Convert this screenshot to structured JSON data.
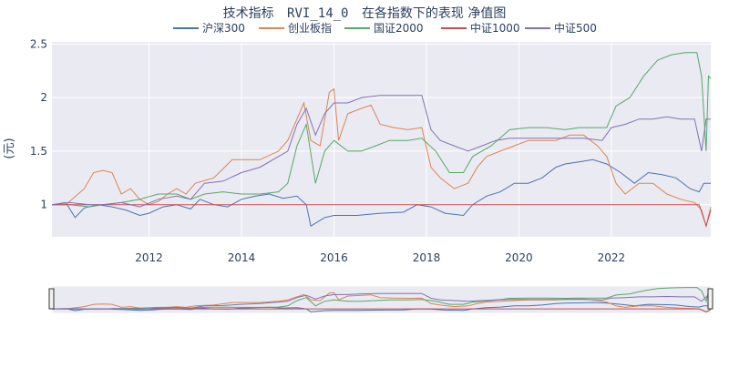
{
  "chart_data": {
    "type": "line",
    "title_main": "技术指标",
    "title_code": "RVI_14_0",
    "title_rest": "在各指数下的表现 净值图",
    "ylabel": "(元)",
    "xlabel": "",
    "xlim": [
      2009.9,
      2024.15
    ],
    "ylim": [
      0.7,
      2.52
    ],
    "x_ticks": [
      2012,
      2014,
      2016,
      2018,
      2020,
      2022
    ],
    "x_tick_labels": [
      "2012",
      "2014",
      "2016",
      "2018",
      "2020",
      "2022"
    ],
    "y_ticks": [
      1,
      1.5,
      2,
      2.5
    ],
    "y_tick_labels": [
      "1",
      "1.5",
      "2",
      "2.5"
    ],
    "legend_position": "top-center",
    "range_slider": true,
    "series": [
      {
        "name": "沪深300",
        "color": "#4c72b0",
        "points": [
          [
            2009.9,
            1.0
          ],
          [
            2010.2,
            1.02
          ],
          [
            2010.4,
            0.88
          ],
          [
            2010.6,
            0.97
          ],
          [
            2010.9,
            1.0
          ],
          [
            2011.2,
            0.98
          ],
          [
            2011.5,
            0.95
          ],
          [
            2011.8,
            0.9
          ],
          [
            2012.0,
            0.92
          ],
          [
            2012.3,
            0.98
          ],
          [
            2012.6,
            1.0
          ],
          [
            2012.9,
            0.96
          ],
          [
            2013.1,
            1.05
          ],
          [
            2013.4,
            1.0
          ],
          [
            2013.7,
            0.98
          ],
          [
            2014.0,
            1.05
          ],
          [
            2014.3,
            1.08
          ],
          [
            2014.6,
            1.1
          ],
          [
            2014.9,
            1.06
          ],
          [
            2015.2,
            1.08
          ],
          [
            2015.4,
            1.0
          ],
          [
            2015.5,
            0.8
          ],
          [
            2015.8,
            0.88
          ],
          [
            2016.0,
            0.9
          ],
          [
            2016.5,
            0.9
          ],
          [
            2017.0,
            0.92
          ],
          [
            2017.5,
            0.93
          ],
          [
            2017.8,
            1.0
          ],
          [
            2018.1,
            0.98
          ],
          [
            2018.4,
            0.92
          ],
          [
            2018.8,
            0.9
          ],
          [
            2019.0,
            1.0
          ],
          [
            2019.3,
            1.08
          ],
          [
            2019.6,
            1.12
          ],
          [
            2019.9,
            1.2
          ],
          [
            2020.2,
            1.2
          ],
          [
            2020.5,
            1.25
          ],
          [
            2020.8,
            1.35
          ],
          [
            2021.0,
            1.38
          ],
          [
            2021.3,
            1.4
          ],
          [
            2021.6,
            1.42
          ],
          [
            2021.9,
            1.38
          ],
          [
            2022.2,
            1.3
          ],
          [
            2022.5,
            1.2
          ],
          [
            2022.8,
            1.3
          ],
          [
            2023.1,
            1.28
          ],
          [
            2023.4,
            1.25
          ],
          [
            2023.7,
            1.15
          ],
          [
            2023.9,
            1.12
          ],
          [
            2024.0,
            1.2
          ],
          [
            2024.15,
            1.2
          ]
        ]
      },
      {
        "name": "创业板指",
        "color": "#dd8452",
        "points": [
          [
            2009.9,
            1.0
          ],
          [
            2010.2,
            1.0
          ],
          [
            2010.6,
            1.15
          ],
          [
            2010.8,
            1.3
          ],
          [
            2011.0,
            1.32
          ],
          [
            2011.2,
            1.3
          ],
          [
            2011.4,
            1.1
          ],
          [
            2011.6,
            1.15
          ],
          [
            2011.8,
            1.05
          ],
          [
            2012.0,
            1.0
          ],
          [
            2012.2,
            1.03
          ],
          [
            2012.4,
            1.1
          ],
          [
            2012.6,
            1.15
          ],
          [
            2012.8,
            1.1
          ],
          [
            2013.0,
            1.2
          ],
          [
            2013.4,
            1.25
          ],
          [
            2013.8,
            1.42
          ],
          [
            2014.0,
            1.42
          ],
          [
            2014.4,
            1.42
          ],
          [
            2014.8,
            1.5
          ],
          [
            2015.0,
            1.6
          ],
          [
            2015.2,
            1.8
          ],
          [
            2015.35,
            1.95
          ],
          [
            2015.5,
            1.6
          ],
          [
            2015.7,
            1.55
          ],
          [
            2015.9,
            2.05
          ],
          [
            2016.0,
            2.08
          ],
          [
            2016.1,
            1.6
          ],
          [
            2016.3,
            1.85
          ],
          [
            2016.6,
            1.9
          ],
          [
            2016.8,
            1.93
          ],
          [
            2017.0,
            1.75
          ],
          [
            2017.3,
            1.72
          ],
          [
            2017.6,
            1.7
          ],
          [
            2017.9,
            1.72
          ],
          [
            2018.1,
            1.35
          ],
          [
            2018.3,
            1.25
          ],
          [
            2018.6,
            1.15
          ],
          [
            2018.9,
            1.2
          ],
          [
            2019.1,
            1.35
          ],
          [
            2019.3,
            1.45
          ],
          [
            2019.6,
            1.5
          ],
          [
            2019.9,
            1.55
          ],
          [
            2020.2,
            1.6
          ],
          [
            2020.5,
            1.6
          ],
          [
            2020.8,
            1.6
          ],
          [
            2021.1,
            1.65
          ],
          [
            2021.4,
            1.65
          ],
          [
            2021.7,
            1.55
          ],
          [
            2021.9,
            1.45
          ],
          [
            2022.1,
            1.2
          ],
          [
            2022.3,
            1.1
          ],
          [
            2022.6,
            1.2
          ],
          [
            2022.9,
            1.2
          ],
          [
            2023.2,
            1.1
          ],
          [
            2023.5,
            1.05
          ],
          [
            2023.8,
            1.02
          ],
          [
            2023.95,
            0.95
          ],
          [
            2024.05,
            0.8
          ],
          [
            2024.15,
            0.98
          ]
        ]
      },
      {
        "name": "国证2000",
        "color": "#55a868",
        "points": [
          [
            2009.9,
            1.0
          ],
          [
            2010.3,
            1.0
          ],
          [
            2010.7,
            0.98
          ],
          [
            2011.0,
            1.0
          ],
          [
            2011.4,
            1.02
          ],
          [
            2011.8,
            1.05
          ],
          [
            2012.2,
            1.1
          ],
          [
            2012.6,
            1.1
          ],
          [
            2012.9,
            1.05
          ],
          [
            2013.2,
            1.1
          ],
          [
            2013.6,
            1.12
          ],
          [
            2014.0,
            1.1
          ],
          [
            2014.4,
            1.1
          ],
          [
            2014.8,
            1.12
          ],
          [
            2015.0,
            1.2
          ],
          [
            2015.2,
            1.55
          ],
          [
            2015.4,
            1.75
          ],
          [
            2015.6,
            1.2
          ],
          [
            2015.8,
            1.5
          ],
          [
            2016.0,
            1.6
          ],
          [
            2016.3,
            1.5
          ],
          [
            2016.6,
            1.5
          ],
          [
            2016.9,
            1.55
          ],
          [
            2017.2,
            1.6
          ],
          [
            2017.6,
            1.6
          ],
          [
            2017.9,
            1.62
          ],
          [
            2018.2,
            1.5
          ],
          [
            2018.5,
            1.3
          ],
          [
            2018.8,
            1.3
          ],
          [
            2019.0,
            1.45
          ],
          [
            2019.4,
            1.55
          ],
          [
            2019.8,
            1.7
          ],
          [
            2020.2,
            1.72
          ],
          [
            2020.6,
            1.72
          ],
          [
            2021.0,
            1.7
          ],
          [
            2021.3,
            1.72
          ],
          [
            2021.6,
            1.72
          ],
          [
            2021.9,
            1.72
          ],
          [
            2022.1,
            1.92
          ],
          [
            2022.4,
            2.0
          ],
          [
            2022.7,
            2.2
          ],
          [
            2023.0,
            2.35
          ],
          [
            2023.3,
            2.4
          ],
          [
            2023.6,
            2.42
          ],
          [
            2023.85,
            2.42
          ],
          [
            2023.95,
            2.2
          ],
          [
            2024.05,
            1.5
          ],
          [
            2024.1,
            2.2
          ],
          [
            2024.15,
            2.18
          ]
        ]
      },
      {
        "name": "中证1000",
        "color": "#c44e52",
        "points": [
          [
            2009.9,
            1.0
          ],
          [
            2012.0,
            1.0
          ],
          [
            2014.0,
            1.0
          ],
          [
            2016.0,
            1.0
          ],
          [
            2018.0,
            1.0
          ],
          [
            2020.0,
            1.0
          ],
          [
            2022.0,
            1.0
          ],
          [
            2023.9,
            1.0
          ],
          [
            2024.05,
            0.8
          ],
          [
            2024.15,
            0.95
          ]
        ]
      },
      {
        "name": "中证500",
        "color": "#8172b3",
        "points": [
          [
            2009.9,
            1.0
          ],
          [
            2010.3,
            1.02
          ],
          [
            2010.7,
            1.0
          ],
          [
            2011.0,
            1.0
          ],
          [
            2011.4,
            1.02
          ],
          [
            2011.8,
            0.98
          ],
          [
            2012.2,
            1.05
          ],
          [
            2012.6,
            1.08
          ],
          [
            2012.9,
            1.05
          ],
          [
            2013.2,
            1.2
          ],
          [
            2013.6,
            1.22
          ],
          [
            2014.0,
            1.3
          ],
          [
            2014.4,
            1.35
          ],
          [
            2014.8,
            1.45
          ],
          [
            2015.0,
            1.5
          ],
          [
            2015.2,
            1.75
          ],
          [
            2015.4,
            1.9
          ],
          [
            2015.6,
            1.65
          ],
          [
            2015.8,
            1.85
          ],
          [
            2016.0,
            1.95
          ],
          [
            2016.3,
            1.95
          ],
          [
            2016.6,
            2.0
          ],
          [
            2017.0,
            2.02
          ],
          [
            2017.5,
            2.02
          ],
          [
            2017.9,
            2.02
          ],
          [
            2018.1,
            1.7
          ],
          [
            2018.3,
            1.6
          ],
          [
            2018.6,
            1.55
          ],
          [
            2018.9,
            1.5
          ],
          [
            2019.2,
            1.55
          ],
          [
            2019.5,
            1.6
          ],
          [
            2019.8,
            1.62
          ],
          [
            2020.2,
            1.62
          ],
          [
            2020.6,
            1.62
          ],
          [
            2021.0,
            1.62
          ],
          [
            2021.4,
            1.62
          ],
          [
            2021.8,
            1.6
          ],
          [
            2022.0,
            1.72
          ],
          [
            2022.3,
            1.75
          ],
          [
            2022.6,
            1.8
          ],
          [
            2022.9,
            1.8
          ],
          [
            2023.2,
            1.82
          ],
          [
            2023.5,
            1.8
          ],
          [
            2023.8,
            1.8
          ],
          [
            2023.95,
            1.5
          ],
          [
            2024.05,
            1.8
          ],
          [
            2024.15,
            1.8
          ]
        ]
      }
    ]
  }
}
